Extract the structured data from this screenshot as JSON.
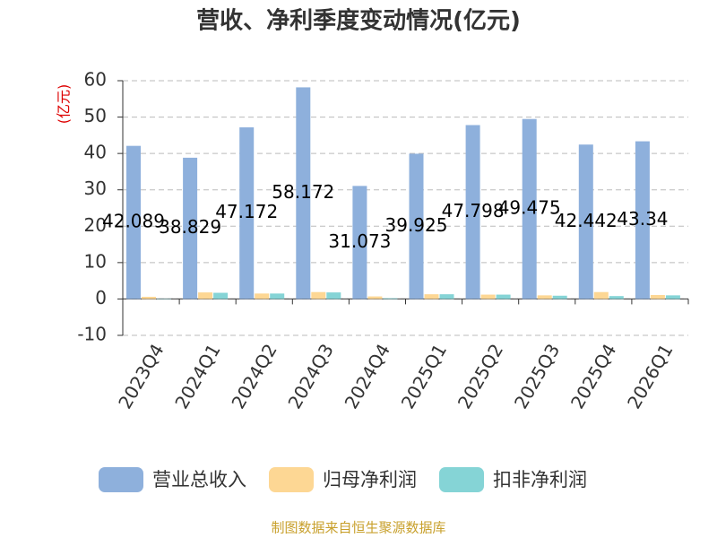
{
  "chart_data": {
    "type": "bar",
    "title": "营收、净利季度变动情况(亿元)",
    "y_label": "(亿元)",
    "source": "制图数据来自恒生聚源数据库",
    "categories": [
      "2023Q4",
      "2024Q1",
      "2024Q2",
      "2024Q3",
      "2024Q4",
      "2025Q1",
      "2025Q2",
      "2025Q3",
      "2025Q4",
      "2026Q1"
    ],
    "series": [
      {
        "name": "营业总收入",
        "color": "#8eb0dc",
        "show_labels": true,
        "values": [
          42.089,
          38.829,
          47.172,
          58.172,
          31.073,
          39.925,
          47.798,
          49.475,
          42.442,
          43.34
        ]
      },
      {
        "name": "归母净利润",
        "color": "#fdd794",
        "show_labels": false,
        "values": [
          0.6,
          1.8,
          1.5,
          1.9,
          0.7,
          1.3,
          1.2,
          1.0,
          1.9,
          1.1
        ]
      },
      {
        "name": "扣非净利润",
        "color": "#85d4d6",
        "show_labels": false,
        "values": [
          0.1,
          1.7,
          1.5,
          1.8,
          0.2,
          1.3,
          1.2,
          0.9,
          0.8,
          1.0
        ]
      }
    ],
    "ylim": [
      -10,
      60
    ],
    "yticks": [
      -10,
      0,
      10,
      20,
      30,
      40,
      50,
      60
    ],
    "grid": true
  }
}
